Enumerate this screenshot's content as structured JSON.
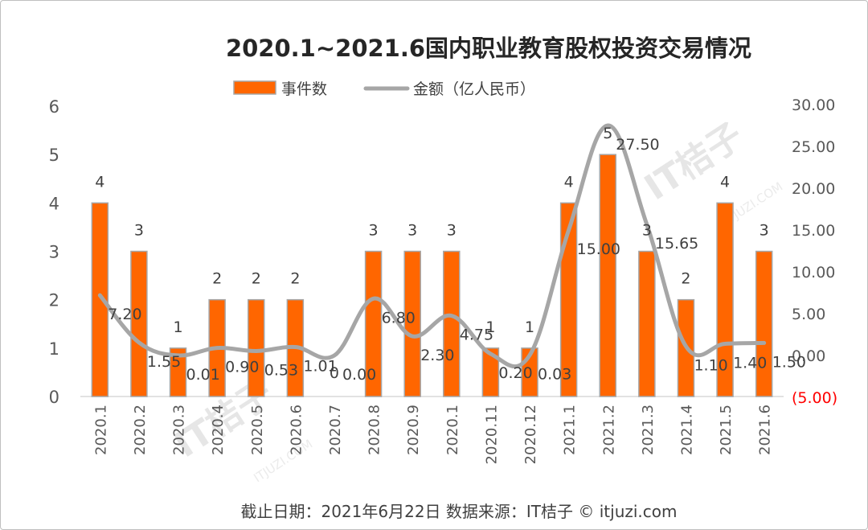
{
  "chart_data": {
    "type": "bar",
    "title": "2020.1~2021.6国内职业教育股权投资交易情况",
    "categories": [
      "2020.1",
      "2020.2",
      "2020.3",
      "2020.4",
      "2020.5",
      "2020.6",
      "2020.7",
      "2020.8",
      "2020.9",
      "2020.1",
      "2020.11",
      "2020.12",
      "2021.1",
      "2021.2",
      "2021.3",
      "2021.4",
      "2021.5",
      "2021.6"
    ],
    "series": [
      {
        "name": "事件数",
        "type": "bar",
        "axis": "left",
        "color": "#ff6600",
        "values": [
          4,
          3,
          1,
          2,
          2,
          2,
          0,
          3,
          3,
          3,
          1,
          1,
          4,
          5,
          3,
          2,
          4,
          3
        ],
        "labels": [
          "4",
          "3",
          "1",
          "2",
          "2",
          "2",
          "0",
          "3",
          "3",
          "3",
          "1",
          "1",
          "4",
          "5",
          "3",
          "2",
          "4",
          "3"
        ]
      },
      {
        "name": "金额（亿人民币）",
        "type": "line",
        "axis": "right",
        "color": "#a6a6a6",
        "values": [
          7.2,
          1.55,
          0.01,
          0.9,
          0.53,
          1.01,
          0.0,
          6.8,
          2.3,
          4.75,
          0.2,
          0.03,
          15.0,
          27.5,
          15.65,
          1.1,
          1.4,
          1.5
        ],
        "labels": [
          "7.20",
          "1.55",
          "0.01",
          "0.90",
          "0.53",
          "1.01",
          "0.00",
          "6.80",
          "2.30",
          "4.75",
          "0.20",
          "0.03",
          "15.00",
          "27.50",
          "15.65",
          "1.10",
          "1.40",
          "1.50"
        ]
      }
    ],
    "yleft": {
      "range": [
        0,
        6
      ],
      "ticks": [
        "0",
        "1",
        "2",
        "3",
        "4",
        "5",
        "6"
      ]
    },
    "yright": {
      "range": [
        -5,
        30
      ],
      "ticks": [
        "(5.00)",
        "0.00",
        "5.00",
        "10.00",
        "15.00",
        "20.00",
        "25.00",
        "30.00"
      ]
    },
    "legend": "top-center",
    "grid": false
  },
  "footer": "截止日期：2021年6月22日     数据来源：IT桔子 © itjuzi.com",
  "watermark": {
    "brand": "IT桔子",
    "site": "ITJUZI.COM"
  }
}
